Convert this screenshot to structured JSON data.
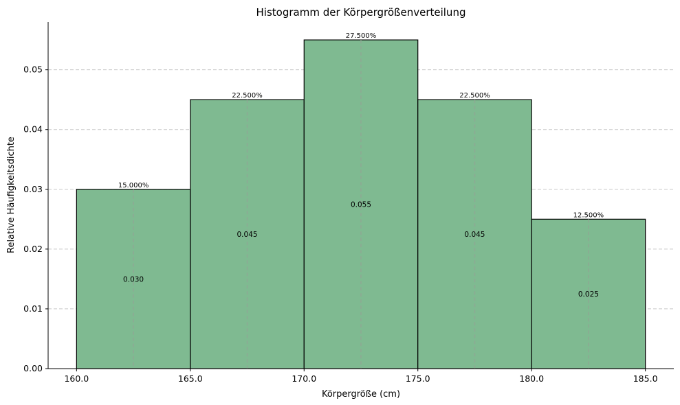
{
  "chart_data": {
    "type": "bar",
    "title": "Histogramm der Körpergrößenverteilung",
    "xlabel": "Körpergröße (cm)",
    "ylabel": "Relative Häufigkeitsdichte",
    "bins": [
      {
        "start": 160.0,
        "end": 165.0,
        "density": 0.03,
        "density_label": "0.030",
        "percent_label": "15.000%"
      },
      {
        "start": 165.0,
        "end": 170.0,
        "density": 0.045,
        "density_label": "0.045",
        "percent_label": "22.500%"
      },
      {
        "start": 170.0,
        "end": 175.0,
        "density": 0.055,
        "density_label": "0.055",
        "percent_label": "27.500%"
      },
      {
        "start": 175.0,
        "end": 180.0,
        "density": 0.045,
        "density_label": "0.045",
        "percent_label": "22.500%"
      },
      {
        "start": 180.0,
        "end": 185.0,
        "density": 0.025,
        "density_label": "0.025",
        "percent_label": "12.500%"
      }
    ],
    "xticks": [
      "160.0",
      "165.0",
      "170.0",
      "175.0",
      "180.0",
      "185.0"
    ],
    "yticks": [
      "0.00",
      "0.01",
      "0.02",
      "0.03",
      "0.04",
      "0.05"
    ],
    "xlim": [
      158.75,
      186.25
    ],
    "ylim": [
      0,
      0.058
    ],
    "grid": "y-axis dashed",
    "bar_color": "#7fba91",
    "edge_color": "#000000"
  }
}
